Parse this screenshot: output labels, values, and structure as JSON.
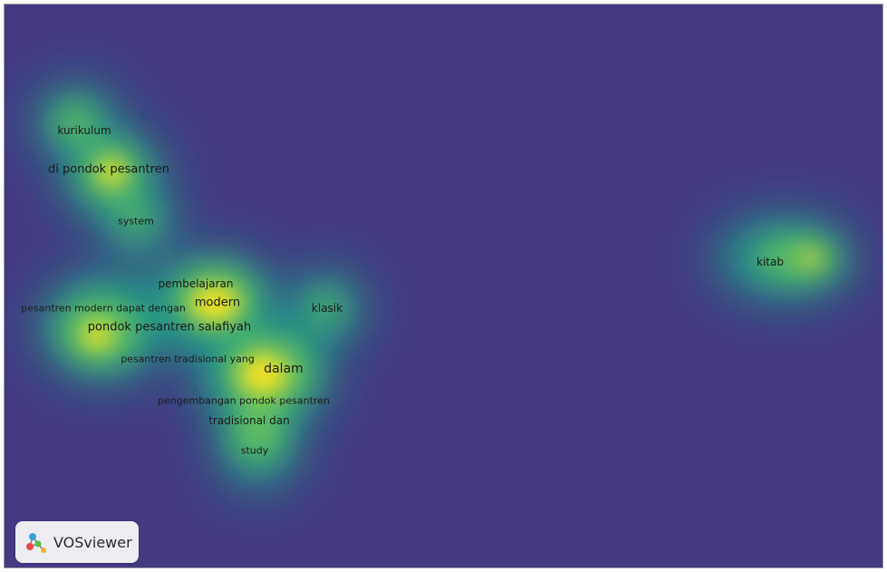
{
  "map": {
    "colors": {
      "background": "#433a82",
      "mid": "#1e9a87",
      "high": "#8fd14d",
      "peak": "#f8e51e"
    },
    "terms": [
      {
        "id": "kurikulum",
        "label": "kurikulum"
      },
      {
        "id": "di-pondok-pesantren",
        "label": "di pondok pesantren"
      },
      {
        "id": "system",
        "label": "system"
      },
      {
        "id": "pembelajaran",
        "label": "pembelajaran"
      },
      {
        "id": "modern",
        "label": "modern"
      },
      {
        "id": "pesantren-modern-dapat-dengan",
        "label": "pesantren modern dapat dengan"
      },
      {
        "id": "pondok-pesantren-salafiyah",
        "label": "pondok pesantren salafiyah"
      },
      {
        "id": "klasik",
        "label": "klasik"
      },
      {
        "id": "pesantren-tradisional-yang",
        "label": "pesantren tradisional yang"
      },
      {
        "id": "dalam",
        "label": "dalam"
      },
      {
        "id": "pengembangan-pondok-pesantren",
        "label": "pengembangan pondok pesantren"
      },
      {
        "id": "tradisional-dan",
        "label": "tradisional dan"
      },
      {
        "id": "study",
        "label": "study"
      },
      {
        "id": "kitab",
        "label": "kitab"
      }
    ]
  },
  "branding": {
    "logo_text": "VOSviewer",
    "logo_icon": "vosviewer-logo-icon"
  }
}
